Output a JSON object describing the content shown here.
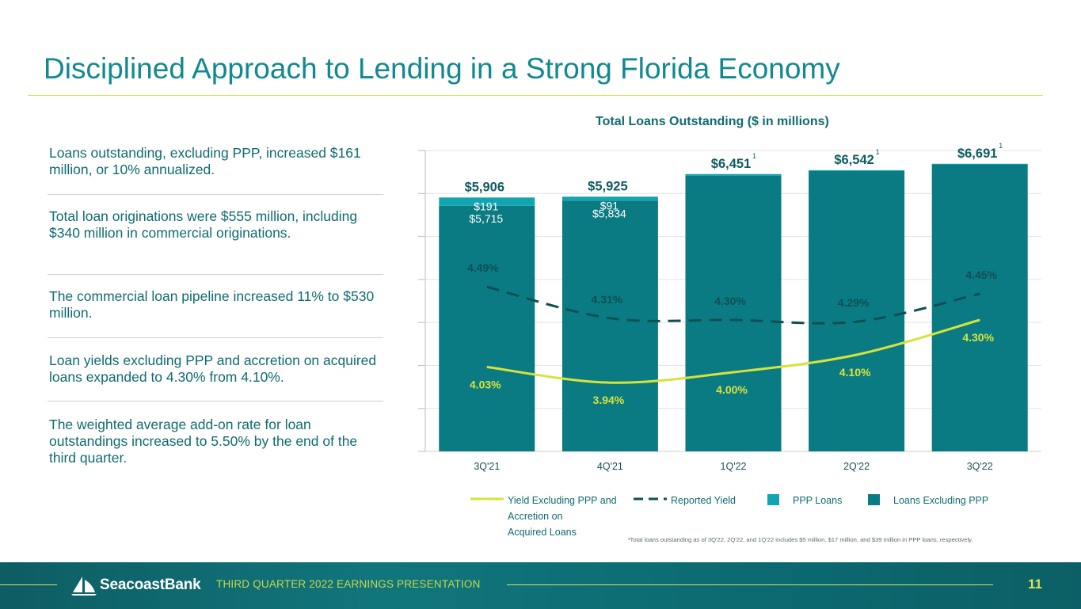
{
  "slide": {
    "title": "Disciplined Approach to Lending in a Strong Florida Economy",
    "page_number": "11",
    "footer_label": "THIRD QUARTER 2022 EARNINGS PRESENTATION",
    "logo_text": "SeacoastBank",
    "colors": {
      "title": "#11898f",
      "text": "#0f6b72",
      "loans_excluding_ppp": "#0b7b83",
      "ppp_loans": "#12a4b0",
      "yield_line": "#d7e33a",
      "reported_line": "#0f4f52",
      "rule": "#d9e25a"
    }
  },
  "bullets": [
    "Loans outstanding, excluding PPP, increased $161 million, or 10% annualized.",
    "Total loan originations were $555 million, including $340 million in commercial originations.",
    "The commercial loan pipeline increased 11% to $530 million.",
    "Loan yields excluding PPP and accretion on acquired loans expanded to 4.30% from 4.10%.",
    "The weighted average add-on rate for loan outstandings increased to 5.50% by the end of the third quarter."
  ],
  "chart_data": {
    "type": "bar",
    "stacked": true,
    "title": "Total Loans Outstanding ($ in millions)",
    "categories": [
      "3Q'21",
      "4Q'21",
      "1Q'22",
      "2Q'22",
      "3Q'22"
    ],
    "ylim": [
      0,
      7000
    ],
    "series": [
      {
        "name": "Loans Excluding PPP",
        "values": [
          5715,
          5834,
          6412,
          6525,
          6686
        ],
        "labels": [
          "$5,715",
          "$5,834",
          "",
          "",
          ""
        ]
      },
      {
        "name": "PPP Loans",
        "values": [
          191,
          91,
          39,
          17,
          5
        ],
        "labels": [
          "$191",
          "$91",
          "",
          "",
          ""
        ]
      }
    ],
    "totals": [
      5906,
      5925,
      6451,
      6542,
      6691
    ],
    "total_labels": [
      "$5,906",
      "$5,925",
      "$6,451",
      "$6,542",
      "$6,691"
    ],
    "total_footnote_marks": [
      "",
      "",
      "1",
      "1",
      "1"
    ],
    "lines": [
      {
        "name": "Reported Yield",
        "style": "dashed",
        "values": [
          4.49,
          4.31,
          4.3,
          4.29,
          4.45
        ],
        "labels": [
          "4.49%",
          "4.31%",
          "4.30%",
          "4.29%",
          "4.45%"
        ]
      },
      {
        "name": "Yield Excluding PPP and Accretion on Acquired Loans",
        "style": "solid",
        "values": [
          4.03,
          3.94,
          4.0,
          4.1,
          4.3
        ],
        "labels": [
          "4.03%",
          "3.94%",
          "4.00%",
          "4.10%",
          "4.30%"
        ]
      }
    ],
    "legend": [
      {
        "label": "Yield Excluding PPP and Accretion on Acquired Loans",
        "label_lines": [
          "Yield Excluding PPP and",
          "Accretion on",
          "Acquired Loans"
        ],
        "kind": "line"
      },
      {
        "label": "Reported Yield",
        "kind": "dash"
      },
      {
        "label": "PPP Loans",
        "kind": "box"
      },
      {
        "label": "Loans Excluding PPP",
        "kind": "box"
      }
    ],
    "footnote": "¹Total loans outstanding as of 3Q'22, 2Q'22, and 1Q'22 includes $5 million, $17 million, and $39 million in PPP loans, respectively."
  }
}
